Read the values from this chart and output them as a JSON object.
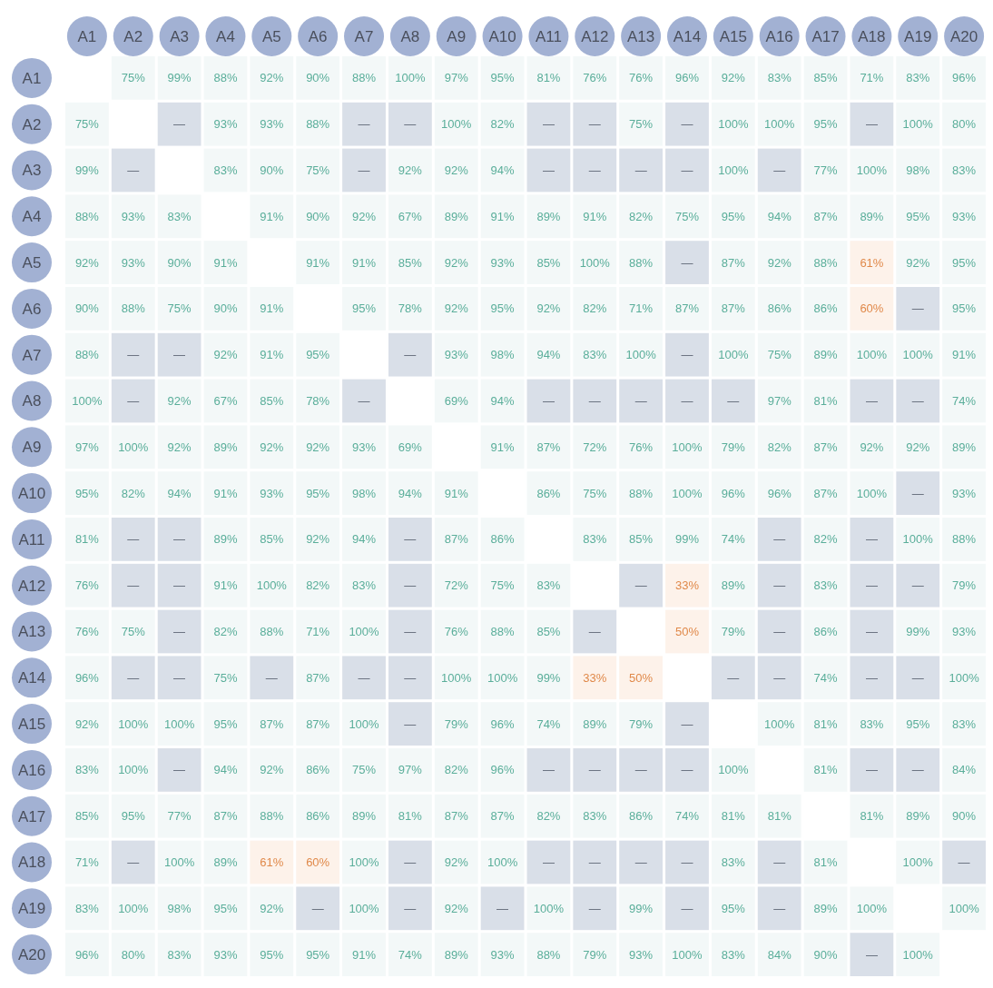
{
  "chart_data": {
    "type": "heatmap",
    "categories": [
      "A1",
      "A2",
      "A3",
      "A4",
      "A5",
      "A6",
      "A7",
      "A8",
      "A9",
      "A10",
      "A11",
      "A12",
      "A13",
      "A14",
      "A15",
      "A16",
      "A17",
      "A18",
      "A19",
      "A20"
    ],
    "y_categories": [
      "A1",
      "A2",
      "A3",
      "A4",
      "A5",
      "A6",
      "A7",
      "A8",
      "A9",
      "A10",
      "A11",
      "A12",
      "A13",
      "A14",
      "A15",
      "A16",
      "A17",
      "A18",
      "A19",
      "A20"
    ],
    "cells": [
      [
        null,
        75,
        99,
        88,
        92,
        90,
        88,
        100,
        97,
        95,
        81,
        76,
        76,
        96,
        92,
        83,
        85,
        71,
        83,
        96
      ],
      [
        75,
        null,
        null,
        93,
        93,
        88,
        null,
        null,
        100,
        82,
        null,
        null,
        75,
        null,
        100,
        100,
        95,
        null,
        100,
        80
      ],
      [
        99,
        null,
        null,
        83,
        90,
        75,
        null,
        92,
        92,
        94,
        null,
        null,
        null,
        null,
        100,
        null,
        77,
        100,
        98,
        83
      ],
      [
        88,
        93,
        83,
        null,
        91,
        90,
        92,
        67,
        89,
        91,
        89,
        91,
        82,
        75,
        95,
        94,
        87,
        89,
        95,
        93
      ],
      [
        92,
        93,
        90,
        91,
        null,
        91,
        91,
        85,
        92,
        93,
        85,
        100,
        88,
        null,
        87,
        92,
        88,
        61,
        92,
        95
      ],
      [
        90,
        88,
        75,
        90,
        91,
        null,
        95,
        78,
        92,
        95,
        92,
        82,
        71,
        87,
        87,
        86,
        86,
        60,
        null,
        95
      ],
      [
        88,
        null,
        null,
        92,
        91,
        95,
        null,
        null,
        93,
        98,
        94,
        83,
        100,
        null,
        100,
        75,
        89,
        100,
        100,
        91
      ],
      [
        100,
        null,
        92,
        67,
        85,
        78,
        null,
        null,
        69,
        94,
        null,
        null,
        null,
        null,
        null,
        97,
        81,
        null,
        null,
        74
      ],
      [
        97,
        100,
        92,
        89,
        92,
        92,
        93,
        69,
        null,
        91,
        87,
        72,
        76,
        100,
        79,
        82,
        87,
        92,
        92,
        89
      ],
      [
        95,
        82,
        94,
        91,
        93,
        95,
        98,
        94,
        91,
        null,
        86,
        75,
        88,
        100,
        96,
        96,
        87,
        100,
        null,
        93
      ],
      [
        81,
        null,
        null,
        89,
        85,
        92,
        94,
        null,
        87,
        86,
        null,
        83,
        85,
        99,
        74,
        null,
        82,
        null,
        100,
        88
      ],
      [
        76,
        null,
        null,
        91,
        100,
        82,
        83,
        null,
        72,
        75,
        83,
        null,
        null,
        33,
        89,
        null,
        83,
        null,
        null,
        79
      ],
      [
        76,
        75,
        null,
        82,
        88,
        71,
        100,
        null,
        76,
        88,
        85,
        null,
        null,
        50,
        79,
        null,
        86,
        null,
        99,
        93
      ],
      [
        96,
        null,
        null,
        75,
        null,
        87,
        null,
        null,
        100,
        100,
        99,
        33,
        50,
        null,
        null,
        null,
        74,
        null,
        null,
        100
      ],
      [
        92,
        100,
        100,
        95,
        87,
        87,
        100,
        null,
        79,
        96,
        74,
        89,
        79,
        null,
        null,
        100,
        81,
        83,
        95,
        83
      ],
      [
        83,
        100,
        null,
        94,
        92,
        86,
        75,
        97,
        82,
        96,
        null,
        null,
        null,
        null,
        100,
        null,
        81,
        null,
        null,
        84
      ],
      [
        85,
        95,
        77,
        87,
        88,
        86,
        89,
        81,
        87,
        87,
        82,
        83,
        86,
        74,
        81,
        81,
        null,
        81,
        89,
        90
      ],
      [
        71,
        null,
        100,
        89,
        61,
        60,
        100,
        null,
        92,
        100,
        null,
        null,
        null,
        null,
        83,
        null,
        81,
        null,
        100,
        null
      ],
      [
        83,
        100,
        98,
        95,
        92,
        null,
        100,
        null,
        92,
        null,
        100,
        null,
        99,
        null,
        95,
        null,
        89,
        100,
        null,
        100
      ],
      [
        96,
        80,
        83,
        93,
        95,
        95,
        91,
        74,
        89,
        93,
        88,
        79,
        93,
        100,
        83,
        84,
        90,
        null,
        100,
        null
      ]
    ],
    "cell_labels": [
      [
        null,
        "75%",
        "99%",
        "88%",
        "92%",
        "90%",
        "88%",
        "100%",
        "97%",
        "95%",
        "81%",
        "76%",
        "76%",
        "96%",
        "92%",
        "83%",
        "85%",
        "71%",
        "83%",
        "96%"
      ],
      [
        "75%",
        null,
        "—",
        "93%",
        "93%",
        "88%",
        "—",
        "—",
        "100%",
        "82%",
        "—",
        "—",
        "75%",
        "—",
        "100%",
        "100%",
        "95%",
        "—",
        "100%",
        "80%"
      ],
      [
        "99%",
        "—",
        null,
        "83%",
        "90%",
        "75%",
        "—",
        "92%",
        "92%",
        "94%",
        "—",
        "—",
        "—",
        "—",
        "100%",
        "—",
        "77%",
        "100%",
        "98%",
        "83%"
      ],
      [
        "88%",
        "93%",
        "83%",
        null,
        "91%",
        "90%",
        "92%",
        "67%",
        "89%",
        "91%",
        "89%",
        "91%",
        "82%",
        "75%",
        "95%",
        "94%",
        "87%",
        "89%",
        "95%",
        "93%"
      ],
      [
        "92%",
        "93%",
        "90%",
        "91%",
        null,
        "91%",
        "91%",
        "85%",
        "92%",
        "93%",
        "85%",
        "100%",
        "88%",
        "—",
        "87%",
        "92%",
        "88%",
        "61%",
        "92%",
        "95%"
      ],
      [
        "90%",
        "88%",
        "75%",
        "90%",
        "91%",
        null,
        "95%",
        "78%",
        "92%",
        "95%",
        "92%",
        "82%",
        "71%",
        "87%",
        "87%",
        "86%",
        "86%",
        "60%",
        "—",
        "95%"
      ],
      [
        "88%",
        "—",
        "—",
        "92%",
        "91%",
        "95%",
        null,
        "—",
        "93%",
        "98%",
        "94%",
        "83%",
        "100%",
        "—",
        "100%",
        "75%",
        "89%",
        "100%",
        "100%",
        "91%"
      ],
      [
        "100%",
        "—",
        "92%",
        "67%",
        "85%",
        "78%",
        "—",
        null,
        "69%",
        "94%",
        "—",
        "—",
        "—",
        "—",
        "—",
        "97%",
        "81%",
        "—",
        "—",
        "74%"
      ],
      [
        "97%",
        "100%",
        "92%",
        "89%",
        "92%",
        "92%",
        "93%",
        "69%",
        null,
        "91%",
        "87%",
        "72%",
        "76%",
        "100%",
        "79%",
        "82%",
        "87%",
        "92%",
        "92%",
        "89%"
      ],
      [
        "95%",
        "82%",
        "94%",
        "91%",
        "93%",
        "95%",
        "98%",
        "94%",
        "91%",
        null,
        "86%",
        "75%",
        "88%",
        "100%",
        "96%",
        "96%",
        "87%",
        "100%",
        "—",
        "93%"
      ],
      [
        "81%",
        "—",
        "—",
        "89%",
        "85%",
        "92%",
        "94%",
        "—",
        "87%",
        "86%",
        null,
        "83%",
        "85%",
        "99%",
        "74%",
        "—",
        "82%",
        "—",
        "100%",
        "88%"
      ],
      [
        "76%",
        "—",
        "—",
        "91%",
        "100%",
        "82%",
        "83%",
        "—",
        "72%",
        "75%",
        "83%",
        null,
        "—",
        "33%",
        "89%",
        "—",
        "83%",
        "—",
        "—",
        "79%"
      ],
      [
        "76%",
        "75%",
        "—",
        "82%",
        "88%",
        "71%",
        "100%",
        "—",
        "76%",
        "88%",
        "85%",
        "—",
        null,
        "50%",
        "79%",
        "—",
        "86%",
        "—",
        "99%",
        "93%"
      ],
      [
        "96%",
        "—",
        "—",
        "75%",
        "—",
        "87%",
        "—",
        "—",
        "100%",
        "100%",
        "99%",
        "33%",
        "50%",
        null,
        "—",
        "—",
        "74%",
        "—",
        "—",
        "100%"
      ],
      [
        "92%",
        "100%",
        "100%",
        "95%",
        "87%",
        "87%",
        "100%",
        "—",
        "79%",
        "96%",
        "74%",
        "89%",
        "79%",
        "—",
        null,
        "100%",
        "81%",
        "83%",
        "95%",
        "83%"
      ],
      [
        "83%",
        "100%",
        "—",
        "94%",
        "92%",
        "86%",
        "75%",
        "97%",
        "82%",
        "96%",
        "—",
        "—",
        "—",
        "—",
        "100%",
        null,
        "81%",
        "—",
        "—",
        "84%"
      ],
      [
        "85%",
        "95%",
        "77%",
        "87%",
        "88%",
        "86%",
        "89%",
        "81%",
        "87%",
        "87%",
        "82%",
        "83%",
        "86%",
        "74%",
        "81%",
        "81%",
        null,
        "81%",
        "89%",
        "90%"
      ],
      [
        "71%",
        "—",
        "100%",
        "89%",
        "61%",
        "60%",
        "100%",
        "—",
        "92%",
        "100%",
        "—",
        "—",
        "—",
        "—",
        "83%",
        "—",
        "81%",
        null,
        "100%",
        "—"
      ],
      [
        "83%",
        "100%",
        "98%",
        "95%",
        "92%",
        "—",
        "100%",
        "—",
        "92%",
        "—",
        "100%",
        "—",
        "99%",
        "—",
        "95%",
        "—",
        "89%",
        "100%",
        null,
        "100%"
      ],
      [
        "96%",
        "80%",
        "83%",
        "93%",
        "95%",
        "95%",
        "91%",
        "74%",
        "89%",
        "93%",
        "88%",
        "79%",
        "93%",
        "100%",
        "83%",
        "84%",
        "90%",
        "—",
        "100%",
        null
      ]
    ]
  }
}
